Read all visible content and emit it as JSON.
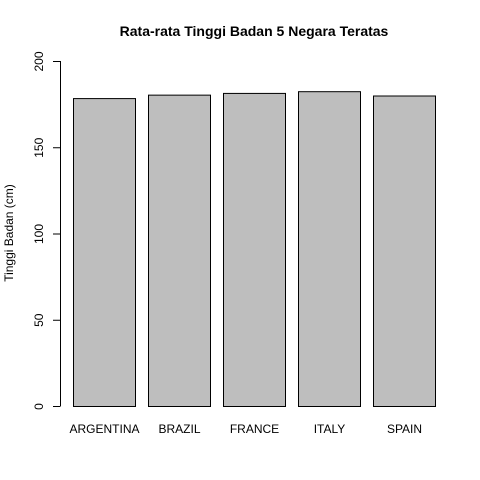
{
  "chart_data": {
    "type": "bar",
    "title": "Rata-rata Tinggi Badan 5 Negara Teratas",
    "xlabel": "",
    "ylabel": "Tinggi Badan (cm)",
    "categories": [
      "ARGENTINA",
      "BRAZIL",
      "FRANCE",
      "ITALY",
      "SPAIN"
    ],
    "values": [
      178.5,
      180.5,
      181.5,
      182.5,
      180.0
    ],
    "ylim": [
      0,
      200
    ],
    "yticks": [
      "0",
      "50",
      "100",
      "150",
      "200"
    ],
    "grid": false,
    "legend": "none",
    "bar_color": "#BEBEBE",
    "border_color": "#000000"
  }
}
